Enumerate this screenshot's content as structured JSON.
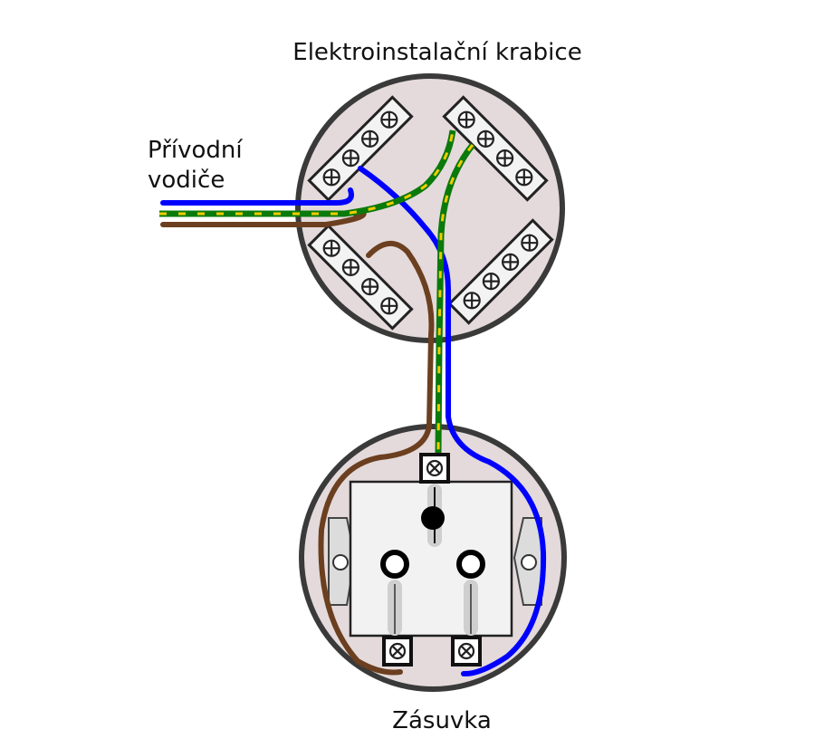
{
  "labels": {
    "junction_box": "Elektroinstalační krabice",
    "supply_wires": [
      "Přívodní",
      "vodiče"
    ],
    "socket": "Zásuvka"
  },
  "colors": {
    "phase": "#6b3f1f",
    "neutral": "#0000ff",
    "earth_green": "#0a7a0a",
    "earth_yellow": "#f2cc00",
    "box_fill": "#e4dadb",
    "box_outline": "#3a3a3a",
    "terminal_fill": "#f3f3f3",
    "socket_plate": "#f2f2f2"
  },
  "icons": {
    "terminal_screw": "crossed-circle-screw",
    "earth_pin": "black-dot",
    "socket_holes": "ring"
  }
}
